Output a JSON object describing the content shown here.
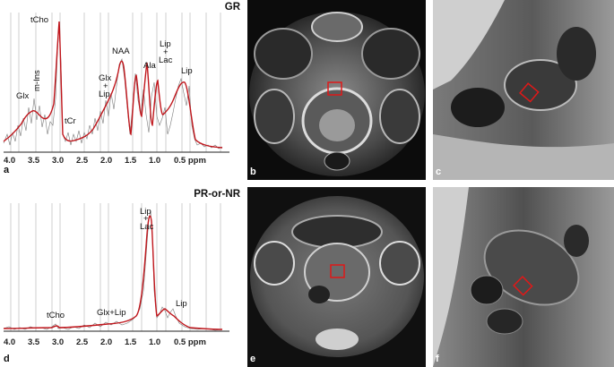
{
  "figure": {
    "spectrum_top": {
      "title": "GR",
      "panel_letter": "a",
      "x_ticks": [
        "4.0",
        "3.5",
        "3.0",
        "2.5",
        "2.0",
        "1.5",
        "1.0",
        "0.5 ppm"
      ],
      "peak_labels": {
        "glx": "Glx",
        "mins": "m-Ins",
        "tcho": "tCho",
        "tcr": "tCr",
        "glx_lip": "Glx\n+\nLip",
        "naa": "NAA",
        "ala": "Ala",
        "lip_lac": "Lip\n+\nLac",
        "lip": "Lip"
      }
    },
    "spectrum_bottom": {
      "title": "PR-or-NR",
      "panel_letter": "d",
      "x_ticks": [
        "4.0",
        "3.5",
        "3.0",
        "2.5",
        "2.0",
        "1.5",
        "1.0",
        "0.5 ppm"
      ],
      "peak_labels": {
        "tcho": "tCho",
        "glx_lip": "Glx+Lip",
        "lip_lac": "Lip\n+\nLac",
        "lip": "Lip"
      }
    },
    "images": {
      "b": "b",
      "c": "c",
      "e": "e",
      "f": "f"
    },
    "colors": {
      "fit_line": "#c0161c",
      "raw_line": "#7a7a7a",
      "roi_box": "#e01818"
    }
  }
}
